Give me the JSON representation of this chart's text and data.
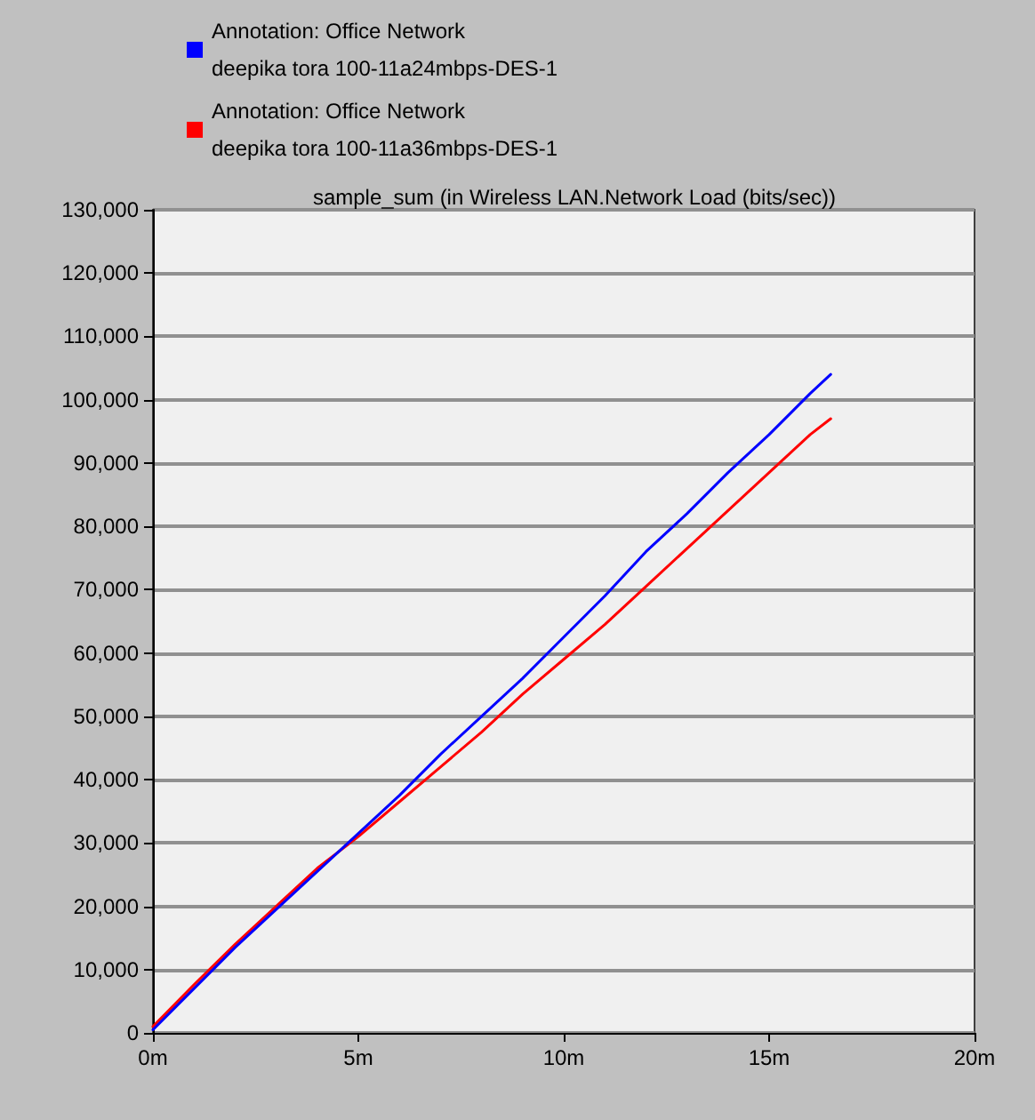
{
  "chart_data": {
    "type": "line",
    "title": "sample_sum (in Wireless LAN.Network Load (bits/sec))",
    "x": [
      0,
      1,
      2,
      3,
      4,
      5,
      6,
      7,
      8,
      9,
      10,
      11,
      12,
      13,
      14,
      15,
      16,
      16.5
    ],
    "series": [
      {
        "name": "Annotation: Office Network\ndeepika tora 100-11a24mbps-DES-1",
        "color": "#0000ff",
        "values": [
          500,
          7000,
          13500,
          19500,
          25500,
          31500,
          37500,
          44000,
          50000,
          56000,
          62500,
          69000,
          76000,
          82000,
          88500,
          94500,
          101000,
          104000
        ]
      },
      {
        "name": "Annotation: Office Network\ndeepika tora 100-11a36mbps-DES-1",
        "color": "#ff0000",
        "values": [
          1000,
          7600,
          14000,
          20000,
          26000,
          31000,
          36500,
          42000,
          47500,
          53500,
          59000,
          64500,
          70500,
          76500,
          82500,
          88500,
          94500,
          97000
        ]
      }
    ],
    "xlim": [
      0,
      20
    ],
    "xticks": [
      {
        "value": 0,
        "label": "0m"
      },
      {
        "value": 5,
        "label": "5m"
      },
      {
        "value": 10,
        "label": "10m"
      },
      {
        "value": 15,
        "label": "15m"
      },
      {
        "value": 20,
        "label": "20m"
      }
    ],
    "ylim": [
      0,
      130000
    ],
    "yticks": [
      {
        "value": 0,
        "label": "0"
      },
      {
        "value": 10000,
        "label": "10,000"
      },
      {
        "value": 20000,
        "label": "20,000"
      },
      {
        "value": 30000,
        "label": "30,000"
      },
      {
        "value": 40000,
        "label": "40,000"
      },
      {
        "value": 50000,
        "label": "50,000"
      },
      {
        "value": 60000,
        "label": "60,000"
      },
      {
        "value": 70000,
        "label": "70,000"
      },
      {
        "value": 80000,
        "label": "80,000"
      },
      {
        "value": 90000,
        "label": "90,000"
      },
      {
        "value": 100000,
        "label": "100,000"
      },
      {
        "value": 110000,
        "label": "110,000"
      },
      {
        "value": 120000,
        "label": "120,000"
      },
      {
        "value": 130000,
        "label": "130,000"
      }
    ],
    "grid": "y",
    "legend": "top",
    "marker": "none",
    "line_style": "solid"
  }
}
